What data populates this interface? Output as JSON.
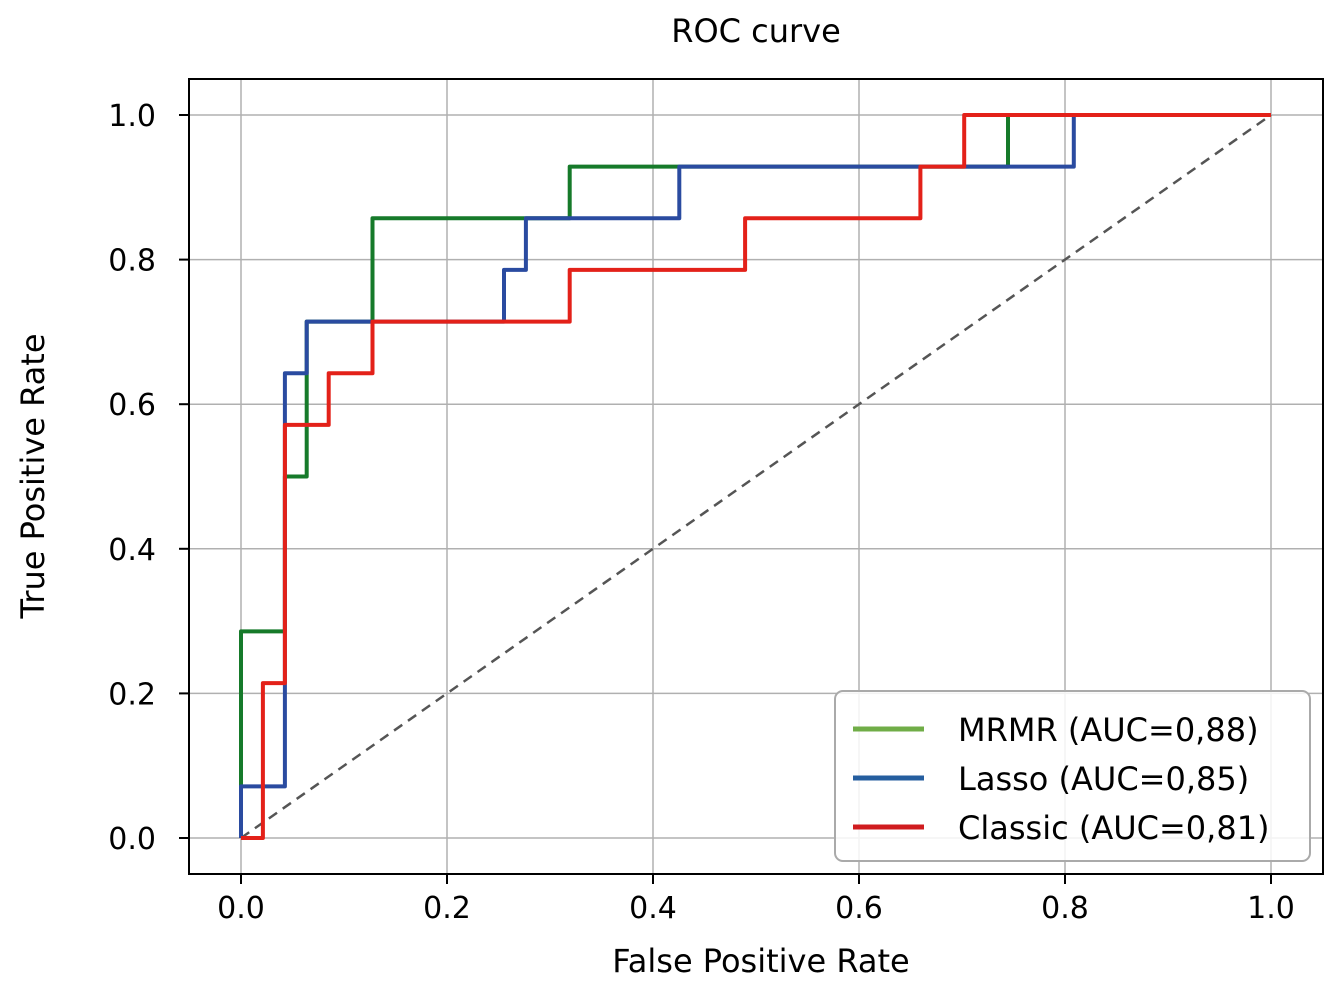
{
  "chart_data": {
    "type": "line",
    "title": "ROC curve",
    "xlabel": "False Positive Rate",
    "ylabel": "True Positive Rate",
    "xlim": [
      -0.05,
      1.05
    ],
    "ylim": [
      -0.05,
      1.05
    ],
    "xticks": [
      0.0,
      0.2,
      0.4,
      0.6,
      0.8,
      1.0
    ],
    "yticks": [
      0.0,
      0.2,
      0.4,
      0.6,
      0.8,
      1.0
    ],
    "xtick_labels": [
      "0.0",
      "0.2",
      "0.4",
      "0.6",
      "0.8",
      "1.0"
    ],
    "ytick_labels": [
      "0.0",
      "0.2",
      "0.4",
      "0.6",
      "0.8",
      "1.0"
    ],
    "grid": true,
    "legend_position": "bottom-right",
    "series": [
      {
        "name": "MRMR (AUC=0,88)",
        "color": "#167a2a",
        "legend_color": "#70ad47",
        "x": [
          0,
          0,
          0.0426,
          0.0426,
          0.0638,
          0.0638,
          0.1277,
          0.1277,
          0.3191,
          0.3191,
          0.7447,
          0.7447,
          1.0
        ],
        "y": [
          0,
          0.2857,
          0.2857,
          0.5,
          0.5,
          0.7143,
          0.7143,
          0.8571,
          0.8571,
          0.9286,
          0.9286,
          1.0,
          1.0
        ]
      },
      {
        "name": "Lasso (AUC=0,85)",
        "color": "#2a4ba0",
        "legend_color": "#255e9f",
        "x": [
          0,
          0,
          0.0213,
          0.0426,
          0.0426,
          0.0638,
          0.0638,
          0.2553,
          0.2553,
          0.2766,
          0.2766,
          0.4255,
          0.4255,
          0.8085,
          0.8085,
          1.0
        ],
        "y": [
          0,
          0.0714,
          0.0714,
          0.0714,
          0.6429,
          0.6429,
          0.7143,
          0.7143,
          0.7857,
          0.7857,
          0.8571,
          0.8571,
          0.9286,
          0.9286,
          1.0,
          1.0
        ]
      },
      {
        "name": "Classic (AUC=0,81)",
        "color": "#e32119",
        "legend_color": "#d01c1f",
        "x": [
          0,
          0.0213,
          0.0213,
          0.0426,
          0.0426,
          0.0851,
          0.0851,
          0.1277,
          0.1277,
          0.3191,
          0.3191,
          0.4894,
          0.4894,
          0.6596,
          0.6596,
          0.7021,
          0.7021,
          1.0
        ],
        "y": [
          0,
          0,
          0.2143,
          0.2143,
          0.5714,
          0.5714,
          0.6429,
          0.6429,
          0.7143,
          0.7143,
          0.7857,
          0.7857,
          0.8571,
          0.8571,
          0.9286,
          0.9286,
          1.0,
          1.0
        ]
      }
    ],
    "reference_line": {
      "name": "chance",
      "color": "#555555",
      "style": "dashed",
      "x": [
        0,
        1
      ],
      "y": [
        0,
        1
      ]
    }
  }
}
